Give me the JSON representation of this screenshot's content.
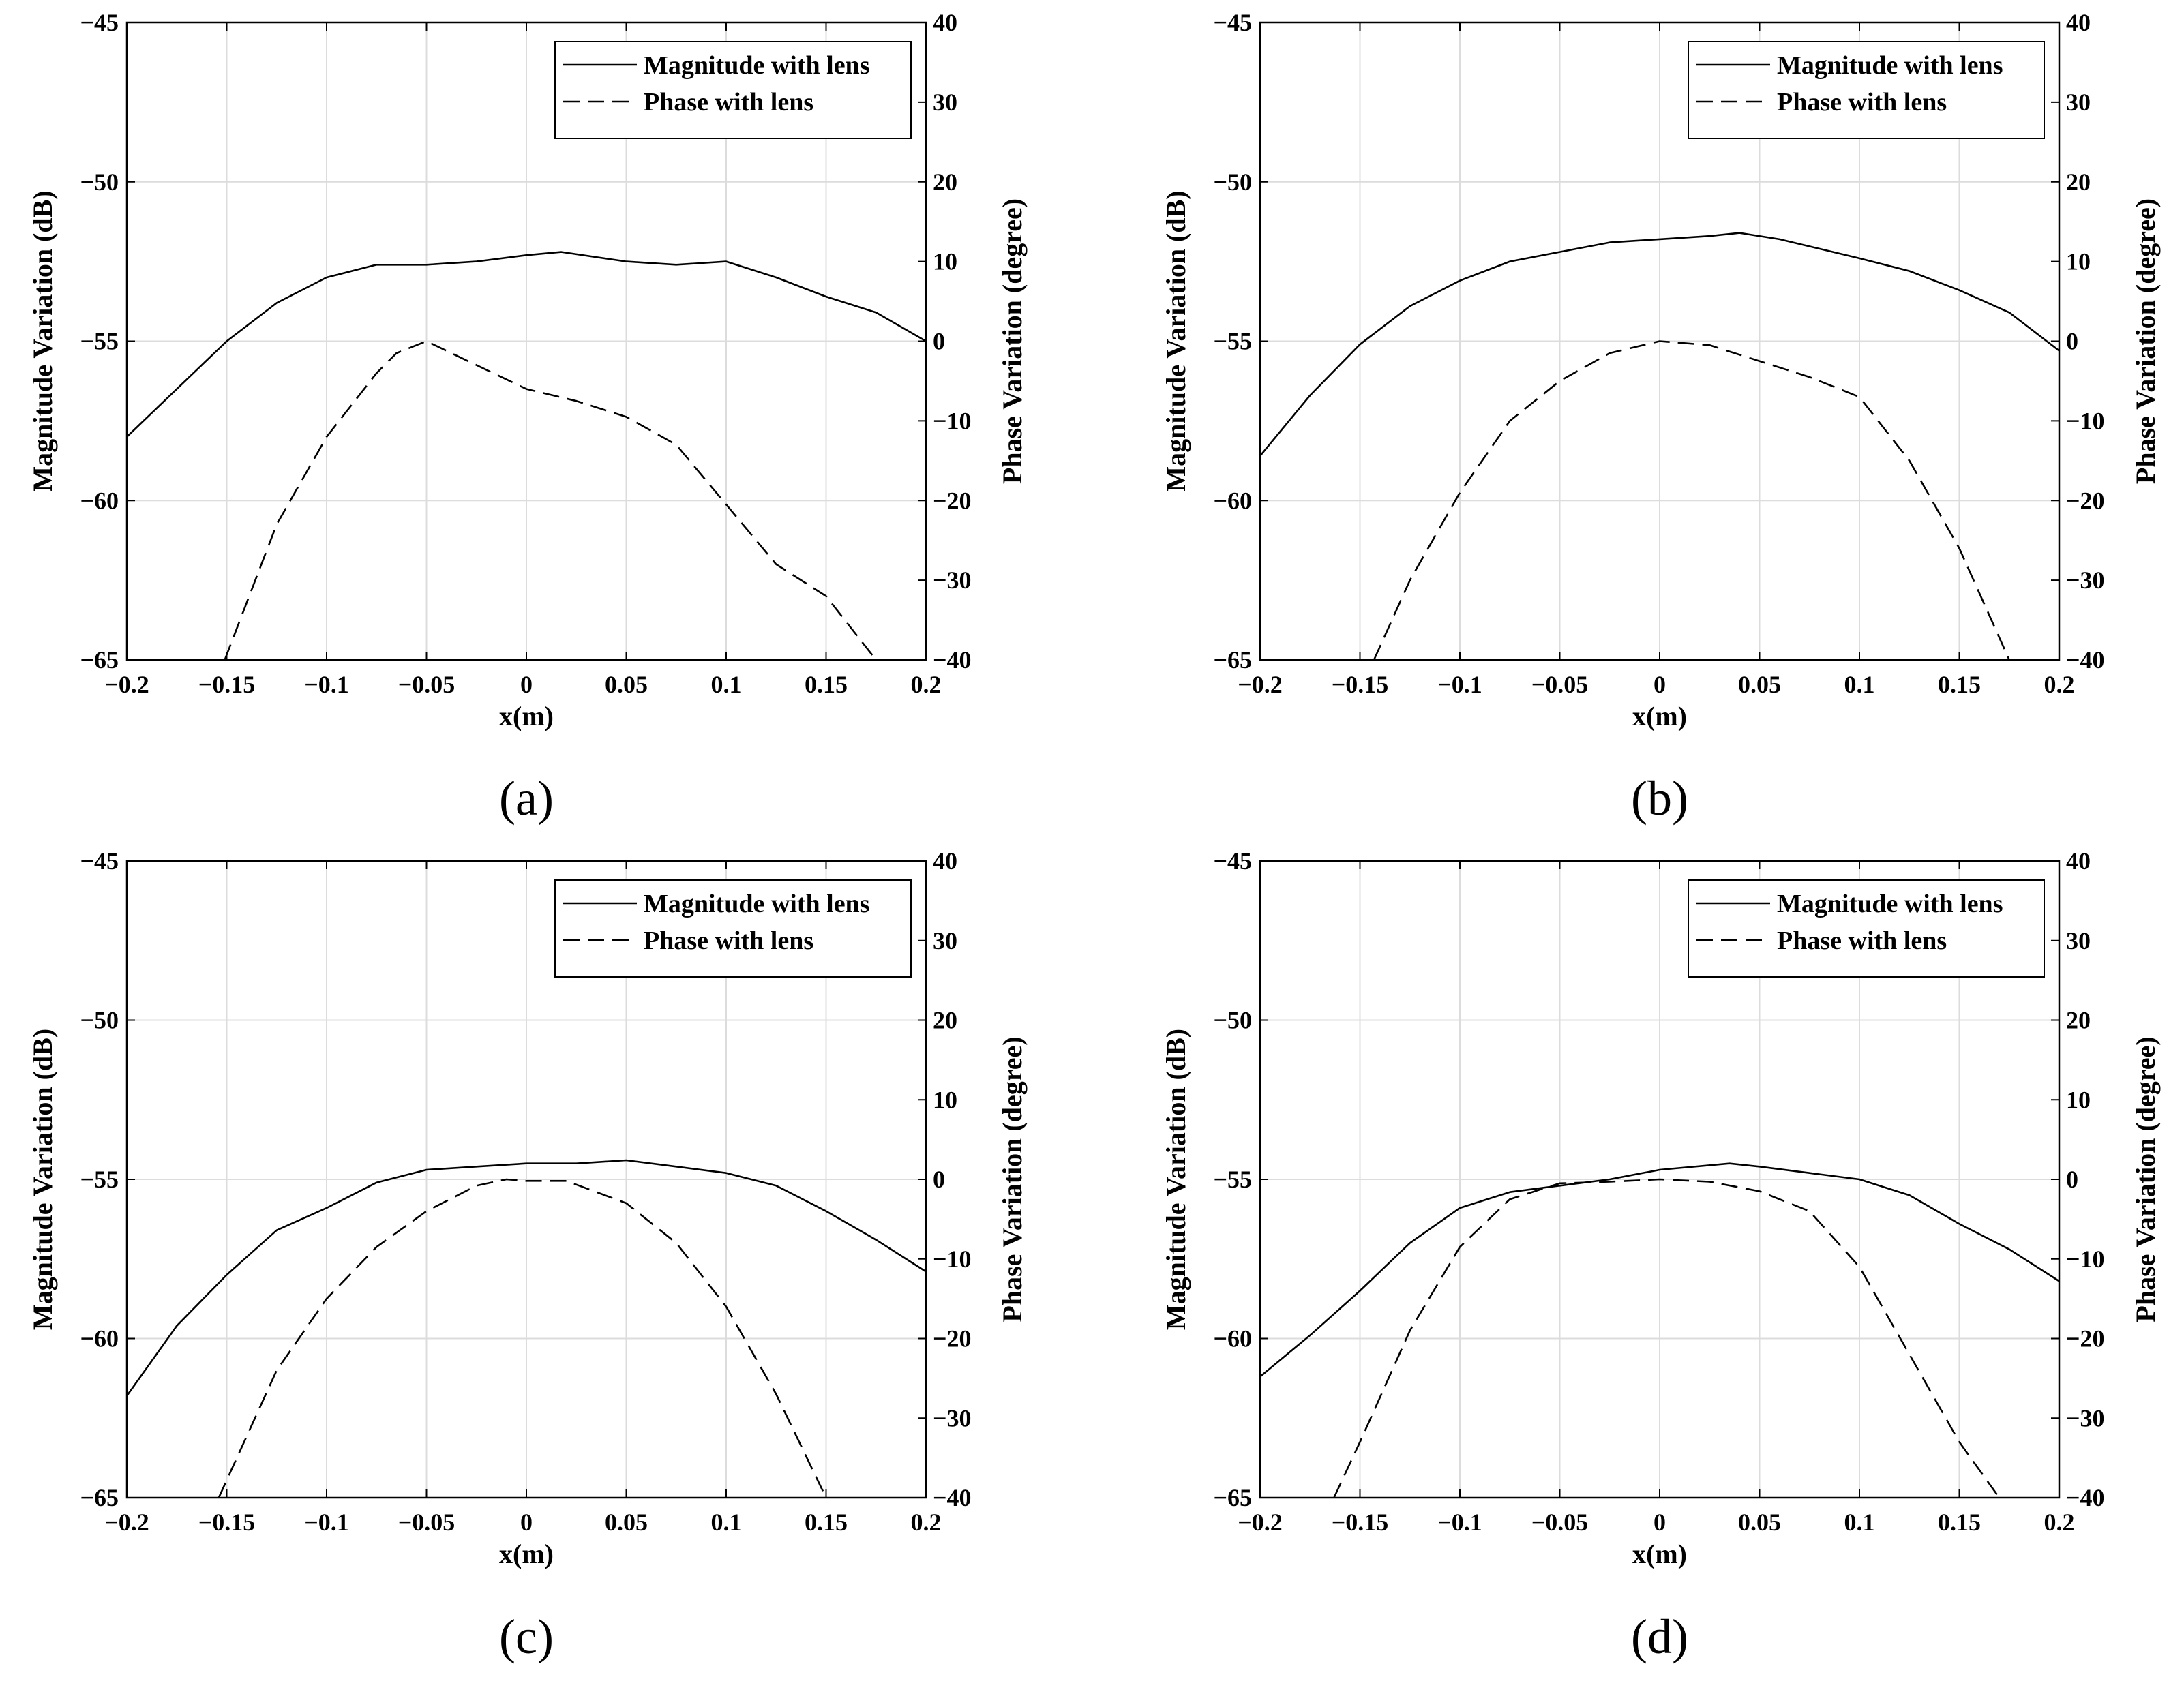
{
  "panels": [
    {
      "label": "(a)"
    },
    {
      "label": "(b)"
    },
    {
      "label": "(c)"
    },
    {
      "label": "(d)"
    }
  ],
  "chart_data": [
    {
      "type": "line",
      "panel": "(a)",
      "xlabel": "x(m)",
      "ylabel_left": "Magnitude Variation (dB)",
      "ylabel_right": "Phase Variation (degree)",
      "xlim": [
        -0.2,
        0.2
      ],
      "ylim_left": [
        -65,
        -45
      ],
      "ylim_right": [
        -40,
        40
      ],
      "xticks": [
        "-0.2",
        "-0.15",
        "-0.1",
        "-0.05",
        "0",
        "0.05",
        "0.1",
        "0.15",
        "0.2"
      ],
      "yticks_left": [
        "-45",
        "-50",
        "-55",
        "-60",
        "-65"
      ],
      "yticks_right": [
        "40",
        "30",
        "20",
        "10",
        "0",
        "-10",
        "-20",
        "-30",
        "-40"
      ],
      "grid": true,
      "legend_position": "top-right",
      "series": [
        {
          "name": "Magnitude with lens",
          "axis": "left",
          "style": "solid",
          "x": [
            -0.2,
            -0.175,
            -0.15,
            -0.125,
            -0.1,
            -0.075,
            -0.05,
            -0.025,
            0,
            0.0175,
            0.05,
            0.075,
            0.1,
            0.125,
            0.15,
            0.175,
            0.2
          ],
          "values": [
            -58,
            -56.5,
            -55,
            -53.8,
            -53,
            -52.6,
            -52.6,
            -52.5,
            -52.3,
            -52.2,
            -52.5,
            -52.6,
            -52.5,
            -53,
            -53.6,
            -54.1,
            -55
          ]
        },
        {
          "name": "Phase with lens",
          "axis": "right",
          "style": "dashed",
          "x": [
            -0.151,
            -0.125,
            -0.1,
            -0.075,
            -0.065,
            -0.05,
            -0.025,
            0,
            0.025,
            0.05,
            0.075,
            0.1,
            0.125,
            0.15,
            0.175
          ],
          "values": [
            -40,
            -23,
            -12,
            -4,
            -1.5,
            0,
            -3,
            -6,
            -7.5,
            -9.5,
            -13,
            -20.5,
            -28,
            -32,
            -40
          ]
        }
      ]
    },
    {
      "type": "line",
      "panel": "(b)",
      "xlabel": "x(m)",
      "ylabel_left": "Magnitude Variation (dB)",
      "ylabel_right": "Phase Variation (degree)",
      "xlim": [
        -0.2,
        0.2
      ],
      "ylim_left": [
        -65,
        -45
      ],
      "ylim_right": [
        -40,
        40
      ],
      "xticks": [
        "-0.2",
        "-0.15",
        "-0.1",
        "-0.05",
        "0",
        "0.05",
        "0.1",
        "0.15",
        "0.2"
      ],
      "yticks_left": [
        "-45",
        "-50",
        "-55",
        "-60",
        "-65"
      ],
      "yticks_right": [
        "40",
        "30",
        "20",
        "10",
        "0",
        "-10",
        "-20",
        "-30",
        "-40"
      ],
      "grid": true,
      "legend_position": "top-right",
      "series": [
        {
          "name": "Magnitude with lens",
          "axis": "left",
          "style": "solid",
          "x": [
            -0.2,
            -0.175,
            -0.15,
            -0.125,
            -0.1,
            -0.075,
            -0.05,
            -0.025,
            0,
            0.025,
            0.04,
            0.06,
            0.1,
            0.125,
            0.15,
            0.175,
            0.2
          ],
          "values": [
            -58.6,
            -56.7,
            -55.1,
            -53.9,
            -53.1,
            -52.5,
            -52.2,
            -51.9,
            -51.8,
            -51.7,
            -51.6,
            -51.8,
            -52.4,
            -52.8,
            -53.4,
            -54.1,
            -55.3
          ]
        },
        {
          "name": "Phase with lens",
          "axis": "right",
          "style": "dashed",
          "x": [
            -0.143,
            -0.125,
            -0.1,
            -0.075,
            -0.05,
            -0.025,
            0,
            0.025,
            0.05,
            0.075,
            0.1,
            0.125,
            0.15,
            0.175
          ],
          "values": [
            -40,
            -30,
            -19,
            -10,
            -5,
            -1.5,
            0,
            -0.5,
            -2.5,
            -4.5,
            -7,
            -15,
            -26,
            -40
          ]
        }
      ]
    },
    {
      "type": "line",
      "panel": "(c)",
      "xlabel": "x(m)",
      "ylabel_left": "Magnitude Variation (dB)",
      "ylabel_right": "Phase Variation (degree)",
      "xlim": [
        -0.2,
        0.2
      ],
      "ylim_left": [
        -65,
        -45
      ],
      "ylim_right": [
        -40,
        40
      ],
      "xticks": [
        "-0.2",
        "-0.15",
        "-0.1",
        "-0.05",
        "0",
        "0.05",
        "0.1",
        "0.15",
        "0.2"
      ],
      "yticks_left": [
        "-45",
        "-50",
        "-55",
        "-60",
        "-65"
      ],
      "yticks_right": [
        "40",
        "30",
        "20",
        "10",
        "0",
        "-10",
        "-20",
        "-30",
        "-40"
      ],
      "grid": true,
      "legend_position": "top-right",
      "series": [
        {
          "name": "Magnitude with lens",
          "axis": "left",
          "style": "solid",
          "x": [
            -0.2,
            -0.175,
            -0.15,
            -0.125,
            -0.1,
            -0.075,
            -0.05,
            -0.025,
            0,
            0.025,
            0.05,
            0.075,
            0.1,
            0.125,
            0.15,
            0.175,
            0.2
          ],
          "values": [
            -61.8,
            -59.6,
            -58,
            -56.6,
            -55.9,
            -55.1,
            -54.7,
            -54.6,
            -54.5,
            -54.5,
            -54.4,
            -54.6,
            -54.8,
            -55.2,
            -56,
            -56.9,
            -57.9
          ]
        },
        {
          "name": "Phase with lens",
          "axis": "right",
          "style": "dashed",
          "x": [
            -0.154,
            -0.125,
            -0.1,
            -0.075,
            -0.05,
            -0.025,
            -0.01,
            0,
            0.02,
            0.05,
            0.075,
            0.1,
            0.125,
            0.15
          ],
          "values": [
            -40,
            -24,
            -15,
            -8.5,
            -4,
            -0.8,
            0,
            -0.2,
            -0.2,
            -3,
            -8,
            -16,
            -27,
            -40
          ]
        }
      ]
    },
    {
      "type": "line",
      "panel": "(d)",
      "xlabel": "x(m)",
      "ylabel_left": "Magnitude Variation (dB)",
      "ylabel_right": "Phase Variation (degree)",
      "xlim": [
        -0.2,
        0.2
      ],
      "ylim_left": [
        -65,
        -45
      ],
      "ylim_right": [
        -40,
        40
      ],
      "xticks": [
        "-0.2",
        "-0.15",
        "-0.1",
        "-0.05",
        "0",
        "0.05",
        "0.1",
        "0.15",
        "0.2"
      ],
      "yticks_left": [
        "-45",
        "-50",
        "-55",
        "-60",
        "-65"
      ],
      "yticks_right": [
        "40",
        "30",
        "20",
        "10",
        "0",
        "-10",
        "-20",
        "-30",
        "-40"
      ],
      "grid": true,
      "legend_position": "top-right",
      "series": [
        {
          "name": "Magnitude with lens",
          "axis": "left",
          "style": "solid",
          "x": [
            -0.2,
            -0.175,
            -0.15,
            -0.125,
            -0.1,
            -0.075,
            -0.05,
            -0.025,
            0,
            0.035,
            0.05,
            0.075,
            0.1,
            0.125,
            0.15,
            0.175,
            0.2
          ],
          "values": [
            -61.2,
            -59.9,
            -58.5,
            -57,
            -55.9,
            -55.4,
            -55.2,
            -55,
            -54.7,
            -54.5,
            -54.6,
            -54.8,
            -55,
            -55.5,
            -56.4,
            -57.2,
            -58.2
          ]
        },
        {
          "name": "Phase with lens",
          "axis": "right",
          "style": "dashed",
          "x": [
            -0.163,
            -0.15,
            -0.125,
            -0.1,
            -0.075,
            -0.05,
            -0.025,
            0,
            0.025,
            0.05,
            0.075,
            0.1,
            0.125,
            0.15,
            0.17
          ],
          "values": [
            -40,
            -33,
            -19,
            -8.5,
            -2.5,
            -0.5,
            -0.3,
            0,
            -0.3,
            -1.5,
            -4,
            -11,
            -22,
            -33,
            -40
          ]
        }
      ]
    }
  ]
}
